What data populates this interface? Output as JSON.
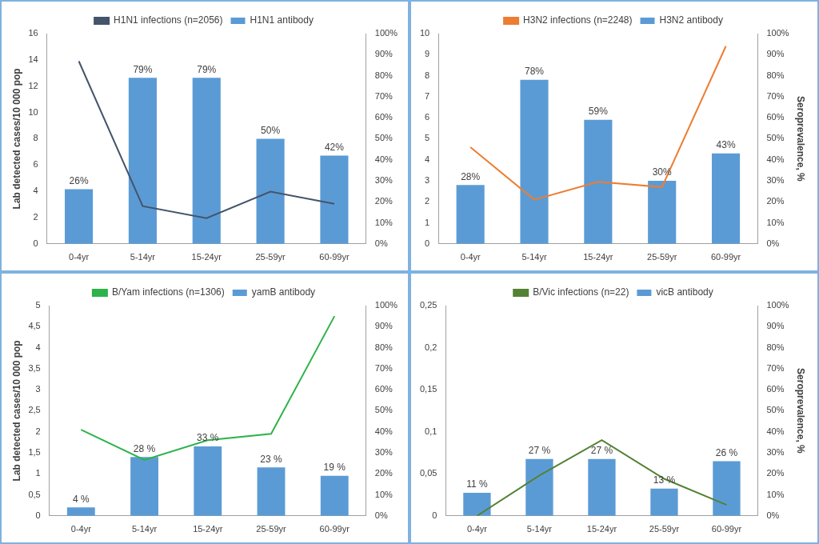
{
  "chart_data": [
    {
      "type": "bar",
      "categories": [
        "0-4yr",
        "5-14yr",
        "15-24yr",
        "25-59yr",
        "60-99yr"
      ],
      "series": [
        {
          "name": "H1N1 antibody",
          "type": "bar",
          "color": "#5b9bd5",
          "axis": "y2",
          "values": [
            26,
            79,
            79,
            50,
            42
          ],
          "value_labels": [
            "26%",
            "79%",
            "79%",
            "50%",
            "42%"
          ]
        },
        {
          "name": "H1N1 infections (n=2056)",
          "type": "line",
          "color": "#44546a",
          "values": [
            13.9,
            2.87,
            1.95,
            3.97,
            3.05
          ]
        }
      ],
      "ylabel": "Lab detected cases/10 000 pop",
      "ylim": [
        0,
        16
      ],
      "yticks": [
        0,
        2,
        4,
        6,
        8,
        10,
        12,
        14,
        16
      ],
      "y2lim": [
        0,
        100
      ],
      "y2ticks": [
        {
          "value": 0,
          "label": "0%"
        },
        {
          "value": 10,
          "label": "10%"
        },
        {
          "value": 20,
          "label": "20%"
        },
        {
          "value": 30,
          "label": "30%"
        },
        {
          "value": 40,
          "label": "40%"
        },
        {
          "value": 50,
          "label": "50%"
        },
        {
          "value": 60,
          "label": "60%"
        },
        {
          "value": 70,
          "label": "70%"
        },
        {
          "value": 80,
          "label": "80%"
        },
        {
          "value": 90,
          "label": "90%"
        },
        {
          "value": 100,
          "label": "100%"
        }
      ],
      "grid": false,
      "legend": "top",
      "data_labels": true
    },
    {
      "type": "bar",
      "categories": [
        "0-4yr",
        "5-14yr",
        "15-24yr",
        "25-59yr",
        "60-99yr"
      ],
      "series": [
        {
          "name": "H3N2 antibody",
          "type": "bar",
          "color": "#5b9bd5",
          "axis": "y2",
          "values": [
            28,
            78,
            59,
            30,
            43
          ],
          "value_labels": [
            "28%",
            "78%",
            "59%",
            "30%",
            "43%"
          ]
        },
        {
          "name": "H3N2 infections (n=2248)",
          "type": "line",
          "color": "#ed7d31",
          "values": [
            4.6,
            2.1,
            2.95,
            2.7,
            9.4
          ]
        }
      ],
      "y2label": "Seroprevalence, %",
      "ylim": [
        0,
        10
      ],
      "yticks": [
        0,
        1,
        2,
        3,
        4,
        5,
        6,
        7,
        8,
        9,
        10
      ],
      "y2lim": [
        0,
        100
      ],
      "y2ticks": [
        {
          "value": 0,
          "label": "0%"
        },
        {
          "value": 10,
          "label": "10%"
        },
        {
          "value": 20,
          "label": "20%"
        },
        {
          "value": 30,
          "label": "30%"
        },
        {
          "value": 40,
          "label": "40%"
        },
        {
          "value": 50,
          "label": "50%"
        },
        {
          "value": 60,
          "label": "60%"
        },
        {
          "value": 70,
          "label": "70%"
        },
        {
          "value": 80,
          "label": "80%"
        },
        {
          "value": 90,
          "label": "90%"
        },
        {
          "value": 100,
          "label": "100%"
        }
      ],
      "grid": false,
      "legend": "top",
      "data_labels": true
    },
    {
      "type": "bar",
      "categories": [
        "0-4yr",
        "5-14yr",
        "15-24yr",
        "25-59yr",
        "60-99yr"
      ],
      "series": [
        {
          "name": "yamB antibody",
          "type": "bar",
          "color": "#5b9bd5",
          "axis": "y2",
          "values": [
            4,
            28,
            33,
            23,
            19
          ],
          "value_labels": [
            "4 %",
            "28 %",
            "33 %",
            "23 %",
            "19 %"
          ]
        },
        {
          "name": "B/Yam infections (n=1306)",
          "type": "line",
          "color": "#2db34a",
          "values": [
            2.05,
            1.33,
            1.8,
            1.95,
            4.75
          ]
        }
      ],
      "ylabel": "Lab detected cases/10 000 pop",
      "ylim": [
        0,
        5
      ],
      "yticks": [
        0,
        {
          "value": 0.5,
          "label": "0,5"
        },
        1,
        {
          "value": 1.5,
          "label": "1,5"
        },
        2,
        {
          "value": 2.5,
          "label": "2,5"
        },
        3,
        {
          "value": 3.5,
          "label": "3,5"
        },
        4,
        {
          "value": 4.5,
          "label": "4,5"
        },
        5
      ],
      "y2lim": [
        0,
        100
      ],
      "y2ticks": [
        {
          "value": 0,
          "label": "0%"
        },
        {
          "value": 10,
          "label": "10%"
        },
        {
          "value": 20,
          "label": "20%"
        },
        {
          "value": 30,
          "label": "30%"
        },
        {
          "value": 40,
          "label": "40%"
        },
        {
          "value": 50,
          "label": "50%"
        },
        {
          "value": 60,
          "label": "60%"
        },
        {
          "value": 70,
          "label": "70%"
        },
        {
          "value": 80,
          "label": "80%"
        },
        {
          "value": 90,
          "label": "90%"
        },
        {
          "value": 100,
          "label": "100%"
        }
      ],
      "grid": false,
      "legend": "top",
      "data_labels": true
    },
    {
      "type": "bar",
      "categories": [
        "0-4yr",
        "5-14yr",
        "15-24yr",
        "25-59yr",
        "60-99yr"
      ],
      "series": [
        {
          "name": "vicB antibody",
          "type": "bar",
          "color": "#5b9bd5",
          "axis": "y2",
          "values": [
            11,
            27,
            27,
            13,
            26
          ],
          "value_labels": [
            "11 %",
            "27 %",
            "27 %",
            "13 %",
            "26 %"
          ]
        },
        {
          "name": "B/Vic infections (n=22)",
          "type": "line",
          "color": "#548235",
          "values": [
            0,
            0.048,
            0.09,
            0.044,
            0.013
          ]
        }
      ],
      "y2label": "Seroprevalence, %",
      "ylim": [
        0,
        0.25
      ],
      "yticks": [
        0,
        {
          "value": 0.05,
          "label": "0,05"
        },
        {
          "value": 0.1,
          "label": "0,1"
        },
        {
          "value": 0.15,
          "label": "0,15"
        },
        {
          "value": 0.2,
          "label": "0,2"
        },
        {
          "value": 0.25,
          "label": "0,25"
        }
      ],
      "y2lim": [
        0,
        100
      ],
      "y2ticks": [
        {
          "value": 0,
          "label": "0%"
        },
        {
          "value": 10,
          "label": "10%"
        },
        {
          "value": 20,
          "label": "20%"
        },
        {
          "value": 30,
          "label": "30%"
        },
        {
          "value": 40,
          "label": "40%"
        },
        {
          "value": 50,
          "label": "50%"
        },
        {
          "value": 60,
          "label": "60%"
        },
        {
          "value": 70,
          "label": "70%"
        },
        {
          "value": 80,
          "label": "80%"
        },
        {
          "value": 90,
          "label": "90%"
        },
        {
          "value": 100,
          "label": "100%"
        }
      ],
      "grid": false,
      "legend": "top",
      "data_labels": true
    }
  ]
}
